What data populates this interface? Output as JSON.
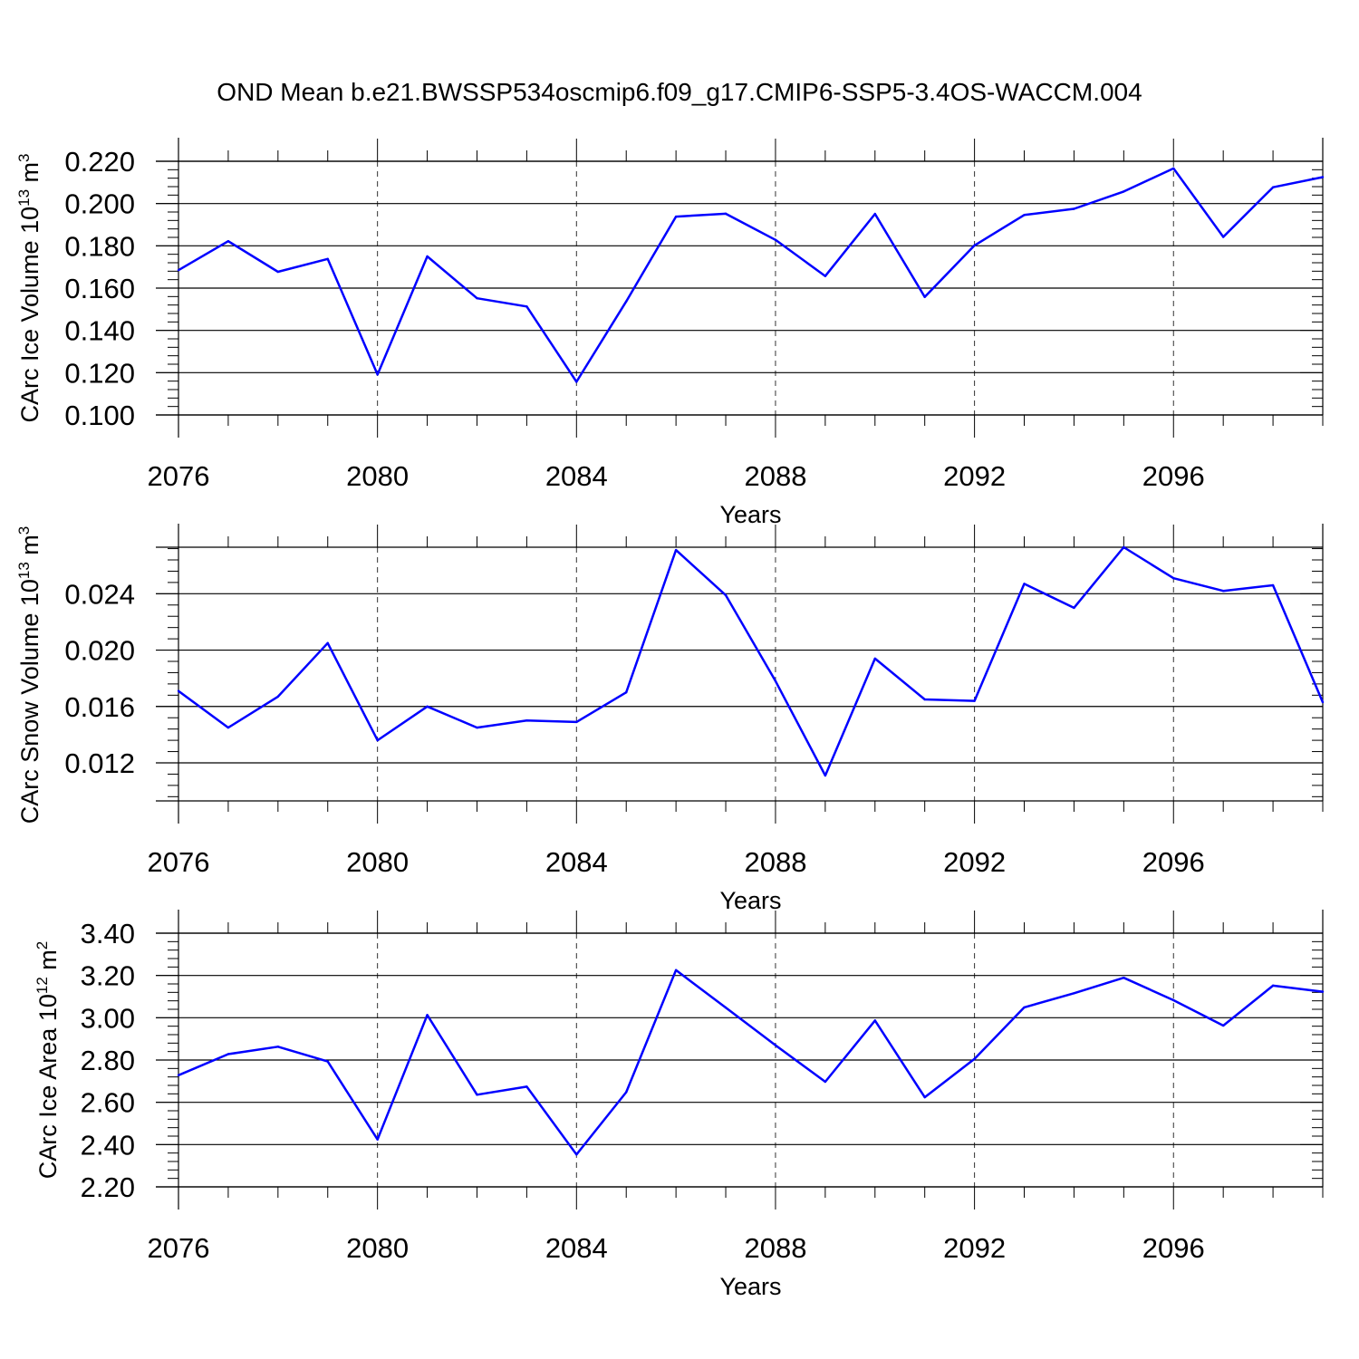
{
  "figure_title": "OND Mean b.e21.BWSSP534oscmip6.f09_g17.CMIP6-SSP5-3.4OS-WACCM.004",
  "colors": {
    "line": "#0000ff",
    "axis": "#000000",
    "grid": "#000000"
  },
  "chart_data": [
    {
      "type": "line",
      "title": "",
      "ylabel_base": "CArc Ice Volume 10",
      "ylabel_exponent": "13",
      "ylabel_unit": " m",
      "ylabel_unit_exponent": "3",
      "xlabel": "Years",
      "xlim": [
        2076,
        2099
      ],
      "ylim": [
        0.1,
        0.22
      ],
      "x_ticks": [
        2076,
        2080,
        2084,
        2088,
        2092,
        2096
      ],
      "x_tick_labels": [
        "2076",
        "2080",
        "2084",
        "2088",
        "2092",
        "2096"
      ],
      "y_ticks": [
        0.1,
        0.12,
        0.14,
        0.16,
        0.18,
        0.2,
        0.22
      ],
      "y_tick_labels": [
        "0.100",
        "0.120",
        "0.140",
        "0.160",
        "0.180",
        "0.200",
        "0.220"
      ],
      "x": [
        2076,
        2077,
        2078,
        2079,
        2080,
        2081,
        2082,
        2083,
        2084,
        2085,
        2086,
        2087,
        2088,
        2089,
        2090,
        2091,
        2092,
        2093,
        2094,
        2095,
        2096,
        2097,
        2098,
        2099
      ],
      "values": [
        0.1685,
        0.1822,
        0.1677,
        0.1738,
        0.1191,
        0.175,
        0.1552,
        0.1513,
        0.1157,
        0.1537,
        0.1938,
        0.1952,
        0.1828,
        0.1657,
        0.1951,
        0.1558,
        0.1802,
        0.1946,
        0.1975,
        0.2057,
        0.2166,
        0.1842,
        0.2077,
        0.2125
      ]
    },
    {
      "type": "line",
      "title": "",
      "ylabel_base": "CArc Snow Volume 10",
      "ylabel_exponent": "13",
      "ylabel_unit": " m",
      "ylabel_unit_exponent": "3",
      "xlabel": "Years",
      "xlim": [
        2076,
        2099
      ],
      "ylim": [
        0.0093,
        0.0273
      ],
      "x_ticks": [
        2076,
        2080,
        2084,
        2088,
        2092,
        2096
      ],
      "x_tick_labels": [
        "2076",
        "2080",
        "2084",
        "2088",
        "2092",
        "2096"
      ],
      "y_ticks": [
        0.012,
        0.016,
        0.02,
        0.024
      ],
      "y_tick_labels": [
        "0.012",
        "0.016",
        "0.020",
        "0.024"
      ],
      "x": [
        2076,
        2077,
        2078,
        2079,
        2080,
        2081,
        2082,
        2083,
        2084,
        2085,
        2086,
        2087,
        2088,
        2089,
        2090,
        2091,
        2092,
        2093,
        2094,
        2095,
        2096,
        2097,
        2098,
        2099
      ],
      "values": [
        0.0171,
        0.0145,
        0.0167,
        0.0205,
        0.0136,
        0.016,
        0.0145,
        0.015,
        0.0149,
        0.017,
        0.0271,
        0.0239,
        0.0178,
        0.0111,
        0.0194,
        0.0165,
        0.0164,
        0.0247,
        0.023,
        0.0273,
        0.0251,
        0.0242,
        0.0246,
        0.0163
      ]
    },
    {
      "type": "line",
      "title": "",
      "ylabel_base": "CArc Ice Area 10",
      "ylabel_exponent": "12",
      "ylabel_unit": " m",
      "ylabel_unit_exponent": "2",
      "xlabel": "Years",
      "xlim": [
        2076,
        2099
      ],
      "ylim": [
        2.2,
        3.4
      ],
      "x_ticks": [
        2076,
        2080,
        2084,
        2088,
        2092,
        2096
      ],
      "x_tick_labels": [
        "2076",
        "2080",
        "2084",
        "2088",
        "2092",
        "2096"
      ],
      "y_ticks": [
        2.2,
        2.4,
        2.6,
        2.8,
        3.0,
        3.2,
        3.4
      ],
      "y_tick_labels": [
        "2.20",
        "2.40",
        "2.60",
        "2.80",
        "3.00",
        "3.20",
        "3.40"
      ],
      "x": [
        2076,
        2077,
        2078,
        2079,
        2080,
        2081,
        2082,
        2083,
        2084,
        2085,
        2086,
        2087,
        2088,
        2089,
        2090,
        2091,
        2092,
        2093,
        2094,
        2095,
        2096,
        2097,
        2098,
        2099
      ],
      "values": [
        2.728,
        2.828,
        2.863,
        2.793,
        2.424,
        3.013,
        2.636,
        2.674,
        2.353,
        2.648,
        3.225,
        3.048,
        2.87,
        2.697,
        2.987,
        2.624,
        2.805,
        3.049,
        3.116,
        3.189,
        3.083,
        2.963,
        3.152,
        3.123
      ]
    }
  ]
}
